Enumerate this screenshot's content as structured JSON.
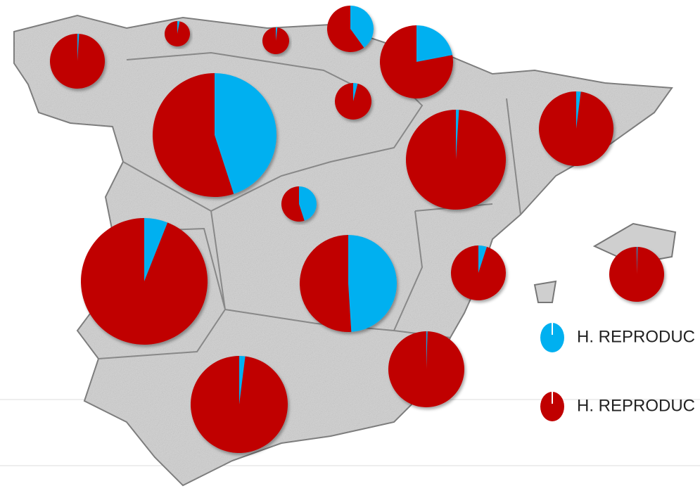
{
  "chart_data": {
    "type": "pie-map",
    "series": [
      {
        "name": "H. REPRODUC",
        "color": "#00b0f0"
      },
      {
        "name": "H. REPRODUC",
        "color": "#c00000"
      }
    ],
    "pies": [
      {
        "values": [
          1,
          99
        ]
      },
      {
        "values": [
          3,
          97
        ]
      },
      {
        "values": [
          2,
          98
        ]
      },
      {
        "values": [
          40,
          60
        ]
      },
      {
        "values": [
          22,
          78
        ]
      },
      {
        "values": [
          4,
          96
        ]
      },
      {
        "values": [
          45,
          55
        ]
      },
      {
        "values": [
          1,
          99
        ]
      },
      {
        "values": [
          2,
          98
        ]
      },
      {
        "values": [
          45,
          55
        ]
      },
      {
        "values": [
          6,
          94
        ]
      },
      {
        "values": [
          49,
          51
        ]
      },
      {
        "values": [
          5,
          95
        ]
      },
      {
        "values": [
          0.5,
          99.5
        ]
      },
      {
        "values": [
          0.5,
          99.5
        ]
      },
      {
        "values": [
          2,
          98
        ]
      }
    ]
  }
}
